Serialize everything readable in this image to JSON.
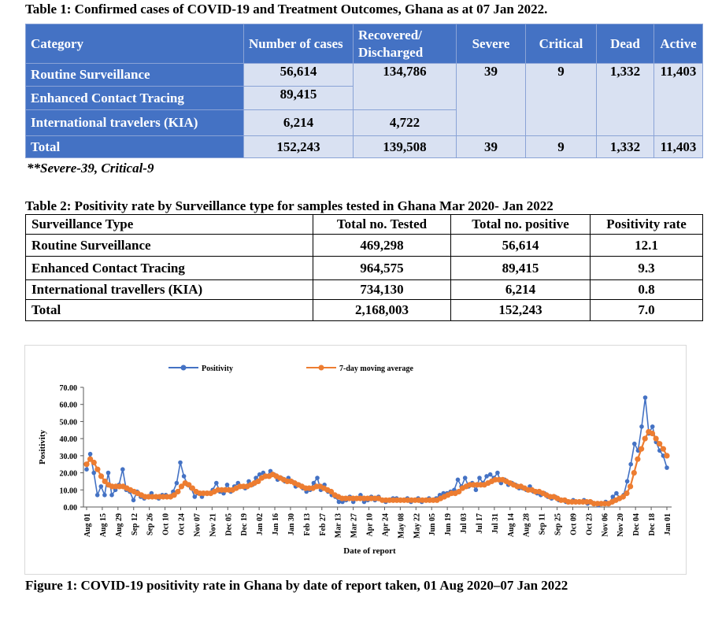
{
  "table1": {
    "title": "Table 1: Confirmed cases of COVID-19 and Treatment Outcomes, Ghana as at 07 Jan 2022.",
    "headers": [
      "Category",
      "Number of cases",
      "Recovered/ Discharged",
      "Severe",
      "Critical",
      "Dead",
      "Active"
    ],
    "rows": [
      {
        "category": "Routine Surveillance",
        "cases": "56,614",
        "recovered": "134,786",
        "severe": "39",
        "critical": "9",
        "dead": "1,332",
        "active": "11,403"
      },
      {
        "category": "Enhanced Contact Tracing",
        "cases": "89,415"
      },
      {
        "category": "International travelers (KIA)",
        "cases": "6,214",
        "recovered": "4,722"
      }
    ],
    "total": {
      "category": "Total",
      "cases": "152,243",
      "recovered": "139,508",
      "severe": "39",
      "critical": "9",
      "dead": "1,332",
      "active": "11,403"
    },
    "note": "**Severe-39, Critical-9"
  },
  "table2": {
    "title": "Table 2: Positivity rate by Surveillance type for samples tested in Ghana Mar 2020- Jan 2022",
    "headers": [
      "Surveillance Type",
      "Total no. Tested",
      "Total no. positive",
      "Positivity rate"
    ],
    "rows": [
      [
        "Routine Surveillance",
        "469,298",
        "56,614",
        "12.1"
      ],
      [
        "Enhanced Contact Tracing",
        "964,575",
        "89,415",
        "9.3"
      ],
      [
        "International travellers (KIA)",
        "734,130",
        "6,214",
        "0.8"
      ],
      [
        "Total",
        "2,168,003",
        "152,243",
        "7.0"
      ]
    ]
  },
  "figure_caption": "Figure 1: COVID-19 positivity rate in Ghana by date of report taken, 01 Aug 2020–07 Jan 2022",
  "chart_data": {
    "type": "line",
    "xlabel": "Date of report",
    "ylabel": "Positivity",
    "ylim": [
      0,
      70
    ],
    "yticks": [
      "0.00",
      "10.00",
      "20.00",
      "30.00",
      "40.00",
      "50.00",
      "60.00",
      "70.00"
    ],
    "xticks": [
      "Aug 01",
      "Aug 15",
      "Aug 29",
      "Sep 12",
      "Sep 26",
      "Oct 10",
      "Oct 24",
      "Nov 07",
      "Nov 21",
      "Dec 05",
      "Dec 19",
      "Jan 02",
      "Jan 16",
      "Jan 30",
      "Feb 13",
      "Feb 27",
      "Mar 13",
      "Mar 27",
      "Apr 10",
      "Apr 24",
      "May 08",
      "May 22",
      "Jun 05",
      "Jun 19",
      "Jul 03",
      "Jul 17",
      "Jul 31",
      "Aug 14",
      "Aug 28",
      "Sep 11",
      "Sep 25",
      "Oct 09",
      "Oct 23",
      "Nov 06",
      "Nov 20",
      "Dec 04",
      "Dec 18",
      "Jan 01"
    ],
    "legend_position": "top",
    "series": [
      {
        "name": "Positivity",
        "color": "#4472c4",
        "values": [
          22.0,
          31.0,
          20.0,
          7.0,
          12.0,
          7.0,
          20.0,
          7.0,
          10.0,
          13.0,
          22.0,
          10.0,
          9.0,
          4.0,
          9.0,
          6.0,
          5.0,
          6.0,
          8.0,
          6.0,
          5.0,
          7.0,
          7.0,
          6.0,
          9.0,
          14.0,
          26.0,
          18.0,
          13.0,
          11.0,
          6.0,
          8.0,
          6.0,
          8.0,
          8.0,
          10.0,
          14.0,
          9.0,
          8.0,
          13.0,
          9.0,
          12.0,
          14.0,
          12.0,
          11.0,
          15.0,
          13.0,
          17.0,
          19.0,
          20.0,
          18.0,
          21.0,
          19.0,
          16.0,
          17.0,
          15.0,
          17.0,
          15.0,
          12.0,
          13.0,
          11.0,
          9.0,
          10.0,
          14.0,
          17.0,
          10.0,
          13.0,
          9.0,
          7.0,
          6.0,
          3.0,
          3.0,
          4.0,
          6.0,
          3.0,
          5.0,
          7.0,
          3.0,
          4.0,
          6.0,
          4.0,
          6.0,
          4.0,
          3.0,
          4.0,
          5.0,
          5.0,
          4.0,
          4.0,
          5.0,
          3.0,
          4.0,
          5.0,
          3.0,
          4.0,
          5.0,
          4.0,
          5.0,
          7.0,
          8.0,
          8.0,
          9.0,
          10.0,
          16.0,
          12.0,
          17.0,
          12.0,
          14.0,
          10.0,
          17.0,
          14.0,
          18.0,
          19.0,
          17.0,
          20.0,
          14.0,
          16.0,
          13.0,
          14.0,
          13.0,
          11.0,
          11.0,
          10.0,
          12.0,
          9.0,
          8.0,
          7.0,
          8.0,
          6.0,
          5.0,
          6.0,
          4.0,
          4.0,
          3.0,
          3.0,
          4.0,
          3.0,
          3.0,
          4.0,
          2.0,
          3.0,
          2.0,
          1.0,
          2.0,
          3.0,
          2.0,
          6.0,
          8.0,
          5.0,
          7.0,
          15.0,
          25.0,
          37.0,
          33.0,
          47.0,
          64.0,
          43.0,
          47.0,
          38.0,
          33.0,
          30.0,
          23.0
        ]
      },
      {
        "name": "7-day moving average",
        "color": "#ed7d31",
        "values": [
          25.0,
          28.0,
          26.0,
          22.0,
          18.0,
          15.0,
          13.0,
          12.0,
          12.0,
          12.0,
          12.0,
          11.0,
          10.0,
          9.0,
          8.0,
          7.0,
          6.0,
          6.0,
          6.0,
          6.0,
          6.0,
          6.0,
          6.0,
          6.0,
          7.0,
          9.0,
          12.0,
          14.0,
          13.0,
          11.0,
          9.0,
          8.0,
          8.0,
          8.0,
          8.0,
          9.0,
          10.0,
          10.0,
          10.0,
          10.0,
          10.0,
          11.0,
          12.0,
          12.0,
          12.0,
          13.0,
          14.0,
          15.0,
          17.0,
          18.0,
          18.0,
          19.0,
          18.0,
          17.0,
          16.0,
          15.0,
          15.0,
          14.0,
          13.0,
          12.0,
          11.0,
          11.0,
          11.0,
          12.0,
          12.0,
          11.0,
          10.0,
          9.0,
          7.0,
          6.0,
          5.0,
          5.0,
          5.0,
          5.0,
          5.0,
          5.0,
          5.0,
          5.0,
          5.0,
          5.0,
          5.0,
          4.0,
          4.0,
          4.0,
          4.0,
          4.0,
          4.0,
          4.0,
          4.0,
          4.0,
          4.0,
          4.0,
          4.0,
          4.0,
          4.0,
          4.0,
          4.0,
          5.0,
          6.0,
          7.0,
          8.0,
          8.0,
          9.0,
          11.0,
          12.0,
          13.0,
          13.0,
          13.0,
          13.0,
          13.0,
          14.0,
          15.0,
          16.0,
          16.0,
          16.0,
          15.0,
          14.0,
          13.0,
          12.0,
          12.0,
          11.0,
          10.0,
          10.0,
          9.0,
          9.0,
          8.0,
          7.0,
          6.0,
          6.0,
          5.0,
          4.0,
          4.0,
          3.0,
          3.0,
          3.0,
          3.0,
          3.0,
          3.0,
          3.0,
          2.0,
          2.0,
          2.0,
          2.0,
          2.0,
          3.0,
          4.0,
          5.0,
          6.0,
          8.0,
          12.0,
          20.0,
          28.0,
          34.0,
          40.0,
          44.0,
          43.0,
          40.0,
          37.0,
          34.0,
          30.0
        ]
      }
    ]
  }
}
